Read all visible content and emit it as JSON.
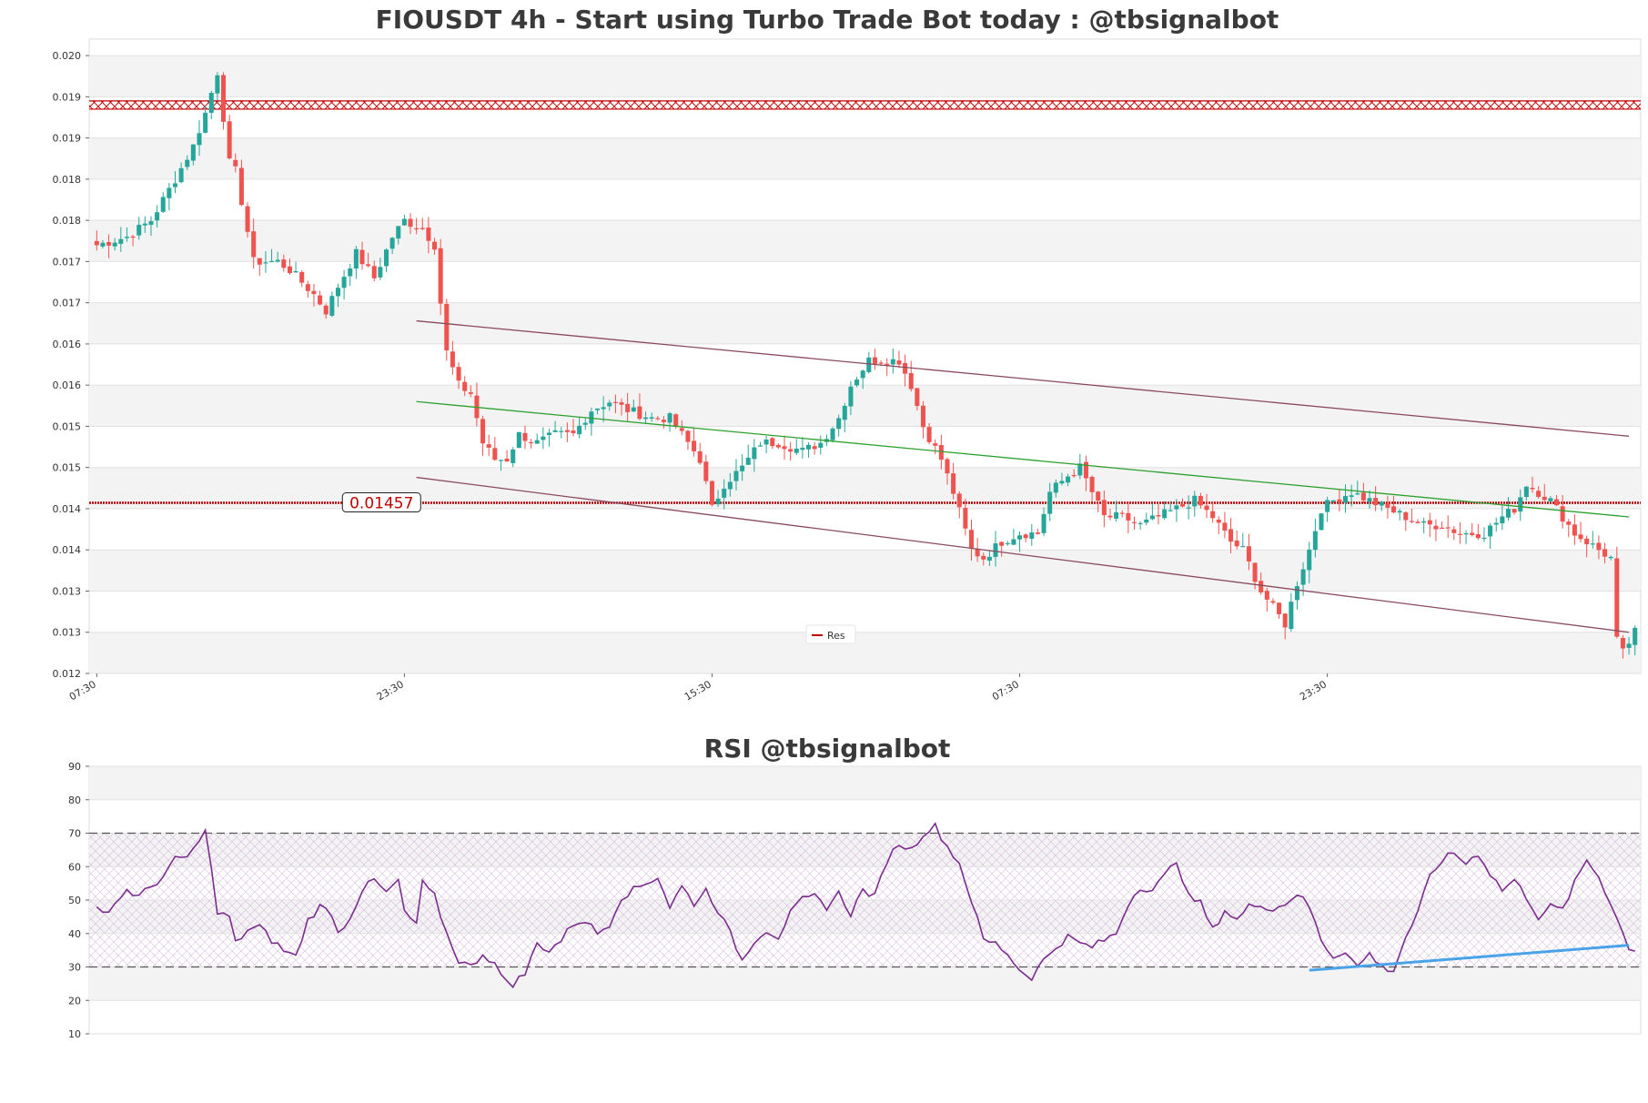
{
  "chart_data": [
    {
      "type": "candlestick",
      "title": "FIOUSDT 4h - Start using Turbo Trade Bot today : @tbsignalbot",
      "y_ticks": [
        "0.020",
        "0.019",
        "0.019",
        "0.018",
        "0.018",
        "0.017",
        "0.017",
        "0.016",
        "0.016",
        "0.015",
        "0.015",
        "0.014",
        "0.014",
        "0.013",
        "0.013",
        "0.012"
      ],
      "y_tick_values": [
        0.02,
        0.0195,
        0.019,
        0.0185,
        0.018,
        0.0175,
        0.017,
        0.0165,
        0.016,
        0.0155,
        0.015,
        0.0145,
        0.014,
        0.0135,
        0.013,
        0.0125
      ],
      "ylim": [
        0.0125,
        0.0202
      ],
      "x_ticks": [
        "07:30",
        "23:30",
        "15:30",
        "07:30",
        "23:30"
      ],
      "x_tick_index": [
        0,
        51,
        102,
        153,
        204
      ],
      "num_candles": 256,
      "resistance_zone": [
        0.01935,
        0.01945
      ],
      "current_level": {
        "value": 0.014571,
        "label": "0.01457"
      },
      "legend": [
        {
          "label": "Res",
          "color": "#c00000"
        }
      ],
      "channel": {
        "color_outer": "#8a4a5e",
        "color_mid": "#2ca02c",
        "upper": {
          "x": [
            53,
            254
          ],
          "y": [
            0.01678,
            0.01538
          ]
        },
        "mid": {
          "x": [
            53,
            254
          ],
          "y": [
            0.0158,
            0.0144
          ]
        },
        "lower": {
          "x": [
            53,
            254
          ],
          "y": [
            0.01488,
            0.013
          ]
        }
      },
      "close_anchors": [
        [
          0,
          0.0177
        ],
        [
          5,
          0.0178
        ],
        [
          9,
          0.018
        ],
        [
          13,
          0.0185
        ],
        [
          16,
          0.0189
        ],
        [
          18,
          0.0193
        ],
        [
          20,
          0.0198
        ],
        [
          22,
          0.0187
        ],
        [
          23,
          0.0186
        ],
        [
          26,
          0.0175
        ],
        [
          30,
          0.0175
        ],
        [
          32,
          0.0174
        ],
        [
          36,
          0.0171
        ],
        [
          38,
          0.0169
        ],
        [
          40,
          0.0172
        ],
        [
          43,
          0.0176
        ],
        [
          46,
          0.0173
        ],
        [
          49,
          0.0178
        ],
        [
          51,
          0.018
        ],
        [
          54,
          0.0179
        ],
        [
          56,
          0.0177
        ],
        [
          57,
          0.017
        ],
        [
          58,
          0.0164
        ],
        [
          60,
          0.016
        ],
        [
          62,
          0.0159
        ],
        [
          64,
          0.0153
        ],
        [
          66,
          0.0151
        ],
        [
          68,
          0.0151
        ],
        [
          70,
          0.0154
        ],
        [
          73,
          0.0153
        ],
        [
          76,
          0.0154
        ],
        [
          79,
          0.0154
        ],
        [
          82,
          0.0157
        ],
        [
          85,
          0.0158
        ],
        [
          88,
          0.0157
        ],
        [
          92,
          0.0156
        ],
        [
          95,
          0.0156
        ],
        [
          98,
          0.0153
        ],
        [
          100,
          0.0151
        ],
        [
          102,
          0.0145
        ],
        [
          104,
          0.0148
        ],
        [
          107,
          0.015
        ],
        [
          110,
          0.0153
        ],
        [
          113,
          0.0153
        ],
        [
          117,
          0.0152
        ],
        [
          120,
          0.0153
        ],
        [
          123,
          0.0156
        ],
        [
          125,
          0.016
        ],
        [
          128,
          0.0163
        ],
        [
          130,
          0.0163
        ],
        [
          133,
          0.0163
        ],
        [
          135,
          0.016
        ],
        [
          137,
          0.0155
        ],
        [
          140,
          0.0151
        ],
        [
          142,
          0.0147
        ],
        [
          145,
          0.014
        ],
        [
          147,
          0.0139
        ],
        [
          150,
          0.0141
        ],
        [
          153,
          0.0142
        ],
        [
          156,
          0.0142
        ],
        [
          158,
          0.0147
        ],
        [
          161,
          0.0149
        ],
        [
          163,
          0.015
        ],
        [
          165,
          0.0147
        ],
        [
          167,
          0.0144
        ],
        [
          170,
          0.0144
        ],
        [
          173,
          0.0143
        ],
        [
          176,
          0.0144
        ],
        [
          179,
          0.0145
        ],
        [
          182,
          0.0146
        ],
        [
          185,
          0.0144
        ],
        [
          188,
          0.0141
        ],
        [
          190,
          0.014
        ],
        [
          193,
          0.0135
        ],
        [
          195,
          0.0133
        ],
        [
          197,
          0.0131
        ],
        [
          199,
          0.0136
        ],
        [
          201,
          0.014
        ],
        [
          203,
          0.0145
        ],
        [
          205,
          0.0146
        ],
        [
          208,
          0.0147
        ],
        [
          211,
          0.0146
        ],
        [
          214,
          0.0145
        ],
        [
          217,
          0.0144
        ],
        [
          220,
          0.0143
        ],
        [
          223,
          0.0143
        ],
        [
          226,
          0.0142
        ],
        [
          230,
          0.0142
        ],
        [
          233,
          0.0144
        ],
        [
          235,
          0.0145
        ],
        [
          237,
          0.0148
        ],
        [
          239,
          0.0147
        ],
        [
          241,
          0.0146
        ],
        [
          243,
          0.0144
        ],
        [
          245,
          0.0142
        ],
        [
          247,
          0.0141
        ],
        [
          249,
          0.014
        ],
        [
          251,
          0.0139
        ],
        [
          252,
          0.0129
        ],
        [
          253,
          0.01275
        ],
        [
          255,
          0.013
        ]
      ]
    },
    {
      "type": "line",
      "title": "RSI @tbsignalbot",
      "y_ticks": [
        "90",
        "80",
        "70",
        "60",
        "50",
        "40",
        "30",
        "20",
        "10"
      ],
      "y_tick_values": [
        90,
        80,
        70,
        60,
        50,
        40,
        30,
        20,
        10
      ],
      "ylim": [
        10,
        90
      ],
      "levels": [
        70,
        30
      ],
      "line_color": "#7b2d8e",
      "trend_color": "#4aa3e8",
      "trend": {
        "x": [
          201,
          254
        ],
        "y": [
          29,
          36.5
        ]
      },
      "rsi_anchors": [
        [
          0,
          47
        ],
        [
          1,
          46
        ],
        [
          3,
          49
        ],
        [
          5,
          53
        ],
        [
          7,
          51
        ],
        [
          9,
          54
        ],
        [
          11,
          57
        ],
        [
          13,
          62
        ],
        [
          15,
          63
        ],
        [
          17,
          67
        ],
        [
          18,
          72
        ],
        [
          20,
          46
        ],
        [
          22,
          45
        ],
        [
          23,
          37
        ],
        [
          25,
          41
        ],
        [
          27,
          42
        ],
        [
          29,
          38
        ],
        [
          31,
          35
        ],
        [
          33,
          33
        ],
        [
          35,
          44
        ],
        [
          37,
          48
        ],
        [
          39,
          46
        ],
        [
          40,
          40
        ],
        [
          42,
          45
        ],
        [
          44,
          53
        ],
        [
          46,
          56
        ],
        [
          48,
          52
        ],
        [
          50,
          56
        ],
        [
          51,
          46
        ],
        [
          53,
          43
        ],
        [
          54,
          55
        ],
        [
          56,
          51
        ],
        [
          58,
          40
        ],
        [
          60,
          32
        ],
        [
          62,
          30
        ],
        [
          64,
          34
        ],
        [
          66,
          31
        ],
        [
          67,
          27
        ],
        [
          69,
          25
        ],
        [
          71,
          28
        ],
        [
          73,
          37
        ],
        [
          75,
          35
        ],
        [
          77,
          38
        ],
        [
          79,
          43
        ],
        [
          81,
          44
        ],
        [
          83,
          40
        ],
        [
          85,
          43
        ],
        [
          87,
          51
        ],
        [
          89,
          53
        ],
        [
          91,
          55
        ],
        [
          93,
          57
        ],
        [
          95,
          48
        ],
        [
          97,
          54
        ],
        [
          99,
          49
        ],
        [
          101,
          53
        ],
        [
          103,
          47
        ],
        [
          105,
          40
        ],
        [
          107,
          32
        ],
        [
          109,
          38
        ],
        [
          111,
          41
        ],
        [
          113,
          39
        ],
        [
          115,
          46
        ],
        [
          117,
          50
        ],
        [
          119,
          51
        ],
        [
          121,
          48
        ],
        [
          123,
          52
        ],
        [
          125,
          46
        ],
        [
          127,
          53
        ],
        [
          129,
          51
        ],
        [
          131,
          62
        ],
        [
          133,
          67
        ],
        [
          135,
          65
        ],
        [
          137,
          70
        ],
        [
          139,
          72
        ],
        [
          141,
          66
        ],
        [
          143,
          61
        ],
        [
          145,
          50
        ],
        [
          147,
          38
        ],
        [
          149,
          37
        ],
        [
          151,
          34
        ],
        [
          153,
          29
        ],
        [
          155,
          27
        ],
        [
          157,
          32
        ],
        [
          159,
          36
        ],
        [
          161,
          39
        ],
        [
          163,
          37
        ],
        [
          165,
          36
        ],
        [
          167,
          38
        ],
        [
          169,
          40
        ],
        [
          171,
          49
        ],
        [
          173,
          54
        ],
        [
          175,
          53
        ],
        [
          177,
          57
        ],
        [
          179,
          62
        ],
        [
          181,
          51
        ],
        [
          183,
          49
        ],
        [
          185,
          41
        ],
        [
          187,
          47
        ],
        [
          189,
          44
        ],
        [
          191,
          48
        ],
        [
          193,
          49
        ],
        [
          195,
          47
        ],
        [
          197,
          49
        ],
        [
          199,
          52
        ],
        [
          201,
          48
        ],
        [
          203,
          38
        ],
        [
          205,
          33
        ],
        [
          207,
          35
        ],
        [
          209,
          30
        ],
        [
          211,
          34
        ],
        [
          213,
          30
        ],
        [
          215,
          29
        ],
        [
          217,
          39
        ],
        [
          219,
          46
        ],
        [
          221,
          57
        ],
        [
          223,
          62
        ],
        [
          225,
          64
        ],
        [
          227,
          61
        ],
        [
          229,
          64
        ],
        [
          231,
          58
        ],
        [
          233,
          53
        ],
        [
          235,
          56
        ],
        [
          237,
          51
        ],
        [
          239,
          45
        ],
        [
          241,
          48
        ],
        [
          243,
          47
        ],
        [
          245,
          55
        ],
        [
          247,
          62
        ],
        [
          249,
          57
        ],
        [
          251,
          49
        ],
        [
          253,
          40
        ],
        [
          254,
          36
        ],
        [
          255,
          35
        ]
      ]
    }
  ]
}
